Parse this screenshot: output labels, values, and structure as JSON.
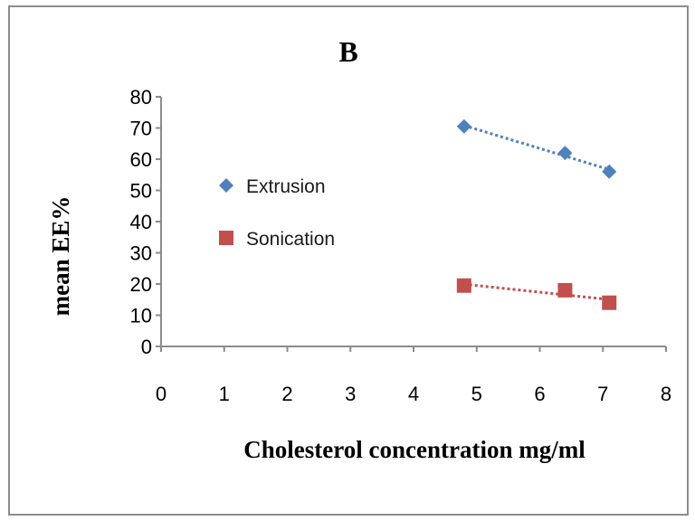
{
  "chart_data": {
    "type": "scatter",
    "title": "B",
    "xlabel": "Cholesterol concentration mg/ml",
    "ylabel": "mean EE%",
    "xlim": [
      0,
      8
    ],
    "ylim": [
      0,
      80
    ],
    "x_ticks": [
      0,
      1,
      2,
      3,
      4,
      5,
      6,
      7,
      8
    ],
    "y_ticks": [
      0,
      10,
      20,
      30,
      40,
      50,
      60,
      70,
      80
    ],
    "grid": false,
    "legend_position": "center-left",
    "series": [
      {
        "name": "Extrusion",
        "marker": "diamond",
        "color": "#4f81bd",
        "trendline": "linear-dotted",
        "x": [
          4.8,
          6.4,
          7.1
        ],
        "y": [
          70.5,
          62,
          56
        ]
      },
      {
        "name": "Sonication",
        "marker": "square",
        "color": "#c0504d",
        "trendline": "linear-dotted",
        "x": [
          4.8,
          6.4,
          7.1
        ],
        "y": [
          19.5,
          18,
          14
        ]
      }
    ]
  }
}
